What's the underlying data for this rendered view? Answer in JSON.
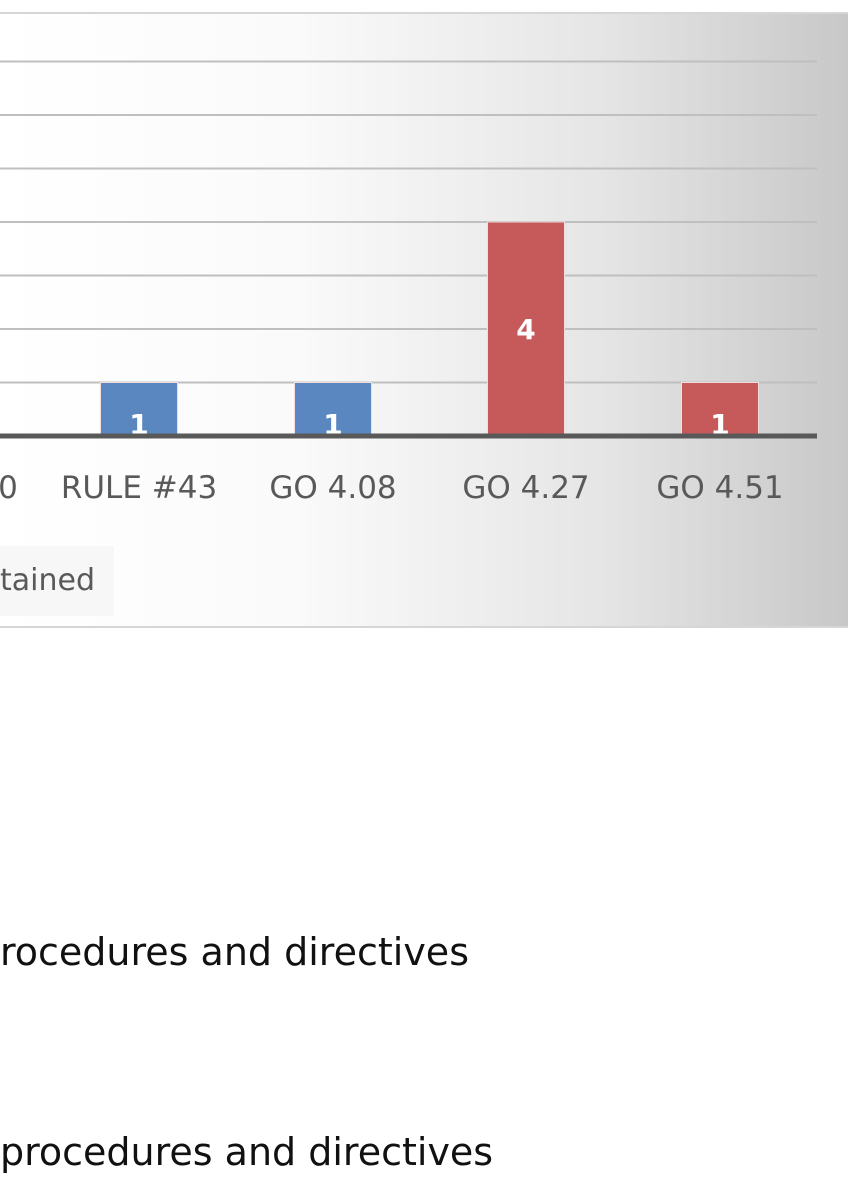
{
  "chart_data": {
    "type": "bar",
    "categories": [
      "0",
      "RULE #43",
      "GO 4.08",
      "GO 4.27",
      "GO 4.51"
    ],
    "series": [
      {
        "color": "#5b87c0",
        "values": [
          null,
          1,
          1,
          null,
          null
        ]
      },
      {
        "color": "#c65a5a",
        "values": [
          null,
          null,
          null,
          4,
          1
        ]
      }
    ],
    "data_labels": [
      "",
      "1",
      "1",
      "4",
      "1"
    ],
    "ylim": [
      0,
      8
    ],
    "grid": true,
    "legend_partial_text": "tained",
    "colors": {
      "axis": "#595959",
      "gridline": "#bfbfbf"
    }
  },
  "body_text": {
    "line1": "rocedures and directives",
    "line2": "procedures and directives"
  }
}
